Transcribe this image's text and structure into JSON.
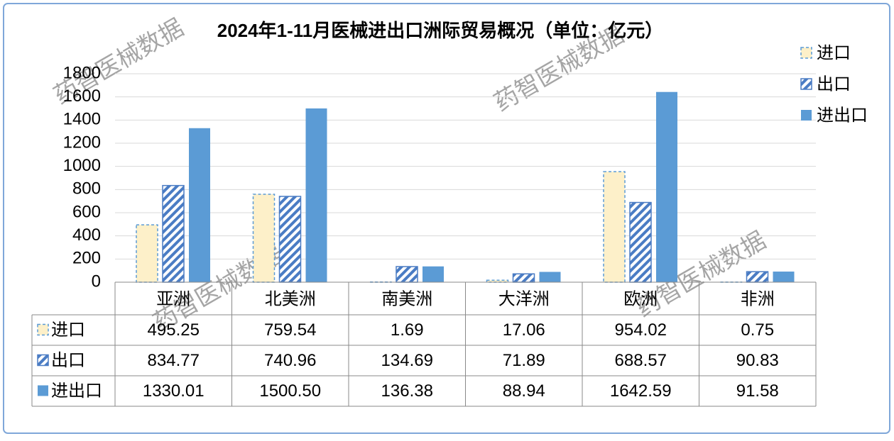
{
  "chart_data": {
    "type": "bar",
    "title": "2024年1-11月医械进出口洲际贸易概况（单位：亿元）",
    "watermark": "药智医械数据",
    "categories": [
      "亚洲",
      "北美洲",
      "南美洲",
      "大洋洲",
      "欧洲",
      "非洲"
    ],
    "series": [
      {
        "name": "进口",
        "color": "#fdf0c9",
        "values": [
          495.25,
          759.54,
          1.69,
          17.06,
          954.02,
          0.75
        ],
        "value_labels": [
          "495.25",
          "759.54",
          "1.69",
          "17.06",
          "954.02",
          "0.75"
        ]
      },
      {
        "name": "出口",
        "color": "#4a7cc4",
        "values": [
          834.77,
          740.96,
          134.69,
          71.89,
          688.57,
          90.83
        ],
        "value_labels": [
          "834.77",
          "740.96",
          "134.69",
          "71.89",
          "688.57",
          "90.83"
        ]
      },
      {
        "name": "进出口",
        "color": "#5b9bd5",
        "values": [
          1330.01,
          1500.5,
          136.38,
          88.94,
          1642.59,
          91.58
        ],
        "value_labels": [
          "1330.01",
          "1500.50",
          "136.38",
          "88.94",
          "1642.59",
          "91.58"
        ]
      }
    ],
    "ylim": [
      0,
      1800
    ],
    "yticks": [
      0,
      200,
      400,
      600,
      800,
      1000,
      1200,
      1400,
      1600,
      1800
    ],
    "grid": true,
    "legend": "top-right",
    "data_table": true
  }
}
